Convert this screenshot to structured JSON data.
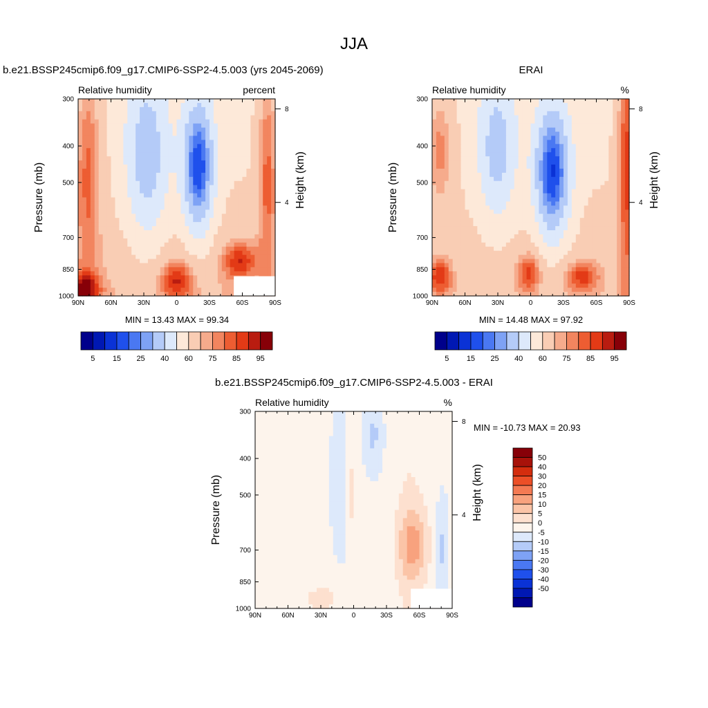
{
  "figure_title": "JJA",
  "colors": {
    "model_scale": [
      "#00008b",
      "#0018b3",
      "#0a32d6",
      "#1f50ec",
      "#4a78f2",
      "#7ea2f5",
      "#b4cbf8",
      "#dde9fb",
      "#fde9d9",
      "#f9cdb4",
      "#f6ab8c",
      "#f2855f",
      "#ed5d32",
      "#e33a16",
      "#b91c10",
      "#870008"
    ],
    "diff_scale": [
      "#00008b",
      "#0018b3",
      "#0a32d6",
      "#1f50ec",
      "#4a78f2",
      "#7ea2f5",
      "#b4cbf8",
      "#dde9fb",
      "#fdf4ec",
      "#fde0cf",
      "#fbc4a7",
      "#f8a27e",
      "#f47a53",
      "#ec4f27",
      "#d42d0e",
      "#a8120a",
      "#870008"
    ]
  },
  "chart_data": [
    {
      "type": "heatmap",
      "title": "b.e21.BSSP245cmip6.f09_g17.CMIP6-SSP2-4.5.003 (yrs 2045-2069)",
      "subtitle_left": "Relative humidity",
      "subtitle_right": "percent",
      "xlabel": "",
      "ylabel": "Pressure (mb)",
      "y2label": "Height (km)",
      "x_ticks": [
        "90N",
        "60N",
        "30N",
        "0",
        "30S",
        "60S",
        "90S"
      ],
      "y_ticks": [
        "300",
        "400",
        "500",
        "700",
        "850",
        "1000"
      ],
      "y2_ticks": [
        "8",
        "4"
      ],
      "min_max": "MIN =  13.43  MAX =  99.34",
      "legend_position": "bottom",
      "colorbar_labels": [
        "5",
        "15",
        "25",
        "40",
        "60",
        "75",
        "85",
        "95"
      ]
    },
    {
      "type": "heatmap",
      "title": "ERAI",
      "subtitle_left": "Relative humidity",
      "subtitle_right": "%",
      "xlabel": "",
      "ylabel": "Pressure (mb)",
      "y2label": "Height (km)",
      "x_ticks": [
        "90N",
        "60N",
        "30N",
        "0",
        "30S",
        "60S",
        "90S"
      ],
      "y_ticks": [
        "300",
        "400",
        "500",
        "700",
        "850",
        "1000"
      ],
      "y2_ticks": [
        "8",
        "4"
      ],
      "min_max": "MIN =  14.48  MAX =  97.92",
      "legend_position": "bottom",
      "colorbar_labels": [
        "5",
        "15",
        "25",
        "40",
        "60",
        "75",
        "85",
        "95"
      ]
    },
    {
      "type": "heatmap",
      "title": "b.e21.BSSP245cmip6.f09_g17.CMIP6-SSP2-4.5.003 - ERAI",
      "subtitle_left": "Relative humidity",
      "subtitle_right": "%",
      "xlabel": "",
      "ylabel": "Pressure (mb)",
      "y2label": "Height (km)",
      "x_ticks": [
        "90N",
        "60N",
        "30N",
        "0",
        "30S",
        "60S",
        "90S"
      ],
      "y_ticks": [
        "300",
        "400",
        "500",
        "700",
        "850",
        "1000"
      ],
      "y2_ticks": [
        "8",
        "4"
      ],
      "min_max": "MIN = -10.73  MAX =  20.93",
      "legend_position": "right",
      "colorbar_labels": [
        "50",
        "40",
        "30",
        "20",
        "15",
        "10",
        "5",
        "0",
        "-5",
        "-10",
        "-15",
        "-20",
        "-30",
        "-40",
        "-50"
      ]
    }
  ]
}
